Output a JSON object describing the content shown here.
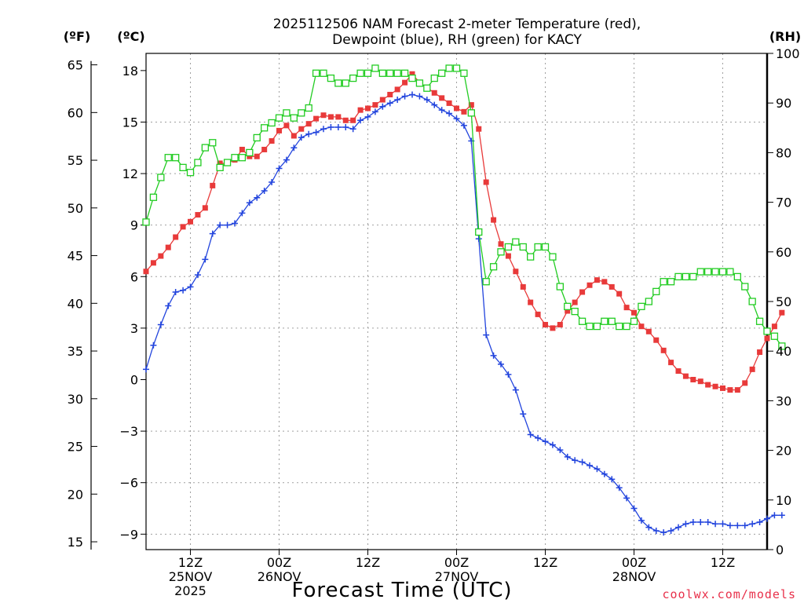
{
  "chart_data": {
    "type": "line",
    "title_line1": "2025112506 NAM Forecast 2-meter Temperature (red),",
    "title_line2": "Dewpoint (blue), RH (green) for KACY",
    "xlabel": "Forecast Time (UTC)",
    "credit": "coolwx.com/models",
    "unit_f": "(ºF)",
    "unit_c": "(ºC)",
    "unit_rh": "(RH)",
    "grid": true,
    "x_range_hours": [
      0,
      84
    ],
    "c_range": [
      -9.9,
      19.0
    ],
    "rh_range": [
      0,
      100
    ],
    "c_ticks": [
      "18",
      "15",
      "12",
      "9",
      "6",
      "3",
      "0",
      "-3",
      "-6",
      "-9"
    ],
    "c_tick_values": [
      18,
      15,
      12,
      9,
      6,
      3,
      0,
      -3,
      -6,
      -9
    ],
    "f_ticks": [
      "65",
      "60",
      "55",
      "50",
      "45",
      "40",
      "35",
      "30",
      "25",
      "20",
      "15"
    ],
    "f_tick_values": [
      65,
      60,
      55,
      50,
      45,
      40,
      35,
      30,
      25,
      20,
      15
    ],
    "rh_ticks": [
      "100",
      "90",
      "80",
      "70",
      "60",
      "50",
      "40",
      "30",
      "20",
      "10",
      "0"
    ],
    "rh_tick_values": [
      100,
      90,
      80,
      70,
      60,
      50,
      40,
      30,
      20,
      10,
      0
    ],
    "x_ticks": [
      {
        "hour": 6,
        "line1": "12Z",
        "line2": "25NOV",
        "line3": "2025"
      },
      {
        "hour": 18,
        "line1": "00Z",
        "line2": "26NOV",
        "line3": ""
      },
      {
        "hour": 30,
        "line1": "12Z",
        "line2": "",
        "line3": ""
      },
      {
        "hour": 42,
        "line1": "00Z",
        "line2": "27NOV",
        "line3": ""
      },
      {
        "hour": 54,
        "line1": "12Z",
        "line2": "",
        "line3": ""
      },
      {
        "hour": 66,
        "line1": "00Z",
        "line2": "28NOV",
        "line3": ""
      },
      {
        "hour": 78,
        "line1": "12Z",
        "line2": "",
        "line3": ""
      }
    ],
    "series": [
      {
        "name": "Temperature",
        "color": "#e83a3a",
        "marker": "filled-square",
        "axis": "c",
        "values": [
          6.3,
          6.8,
          7.2,
          7.7,
          8.3,
          8.9,
          9.2,
          9.6,
          10.0,
          11.3,
          12.6,
          12.6,
          12.8,
          13.4,
          13.0,
          13.0,
          13.4,
          13.9,
          14.5,
          14.8,
          14.2,
          14.6,
          14.9,
          15.2,
          15.4,
          15.3,
          15.3,
          15.1,
          15.1,
          15.7,
          15.8,
          16.0,
          16.3,
          16.6,
          16.9,
          17.3,
          17.8,
          17.3,
          17.0,
          16.7,
          16.4,
          16.1,
          15.8,
          15.6,
          16.0,
          14.6,
          11.5,
          9.3,
          7.9,
          7.2,
          6.3,
          5.4,
          4.5,
          3.8,
          3.2,
          3.0,
          3.2,
          4.0,
          4.5,
          5.1,
          5.5,
          5.8,
          5.7,
          5.4,
          5.0,
          4.2,
          3.9,
          3.1,
          2.8,
          2.3,
          1.7,
          1.0,
          0.5,
          0.2,
          0.0,
          -0.1,
          -0.3,
          -0.4,
          -0.5,
          -0.6,
          -0.6,
          -0.2,
          0.6,
          1.6,
          2.4,
          3.1,
          3.9
        ]
      },
      {
        "name": "Dewpoint",
        "color": "#2244dd",
        "marker": "plus",
        "axis": "c",
        "values": [
          0.6,
          2.0,
          3.2,
          4.3,
          5.1,
          5.2,
          5.4,
          6.1,
          7.0,
          8.5,
          9.0,
          9.0,
          9.1,
          9.7,
          10.3,
          10.6,
          11.0,
          11.5,
          12.3,
          12.8,
          13.5,
          14.1,
          14.3,
          14.4,
          14.6,
          14.7,
          14.7,
          14.7,
          14.6,
          15.1,
          15.3,
          15.6,
          15.9,
          16.1,
          16.3,
          16.5,
          16.6,
          16.5,
          16.3,
          16.0,
          15.7,
          15.5,
          15.2,
          14.8,
          13.9,
          8.2,
          2.6,
          1.4,
          0.9,
          0.3,
          -0.6,
          -2.0,
          -3.2,
          -3.4,
          -3.6,
          -3.8,
          -4.1,
          -4.5,
          -4.7,
          -4.8,
          -5.0,
          -5.2,
          -5.5,
          -5.8,
          -6.3,
          -6.9,
          -7.5,
          -8.2,
          -8.6,
          -8.8,
          -8.9,
          -8.8,
          -8.6,
          -8.4,
          -8.3,
          -8.3,
          -8.3,
          -8.4,
          -8.4,
          -8.5,
          -8.5,
          -8.5,
          -8.4,
          -8.3,
          -8.1,
          -7.9,
          -7.9
        ]
      },
      {
        "name": "RH",
        "color": "#22cc22",
        "marker": "open-square",
        "axis": "rh",
        "values": [
          66,
          71,
          75,
          79,
          79,
          77,
          76,
          78,
          81,
          82,
          77,
          78,
          79,
          79,
          80,
          83,
          85,
          86,
          87,
          88,
          87,
          88,
          89,
          96,
          96,
          95,
          94,
          94,
          95,
          96,
          96,
          97,
          96,
          96,
          96,
          96,
          95,
          94,
          93,
          95,
          96,
          97,
          97,
          96,
          88,
          64,
          54,
          57,
          60,
          61,
          62,
          61,
          59,
          61,
          61,
          59,
          53,
          49,
          48,
          46,
          45,
          45,
          46,
          46,
          45,
          45,
          46,
          49,
          50,
          52,
          54,
          54,
          55,
          55,
          55,
          56,
          56,
          56,
          56,
          56,
          55,
          53,
          50,
          46,
          44,
          43,
          41
        ]
      }
    ]
  }
}
